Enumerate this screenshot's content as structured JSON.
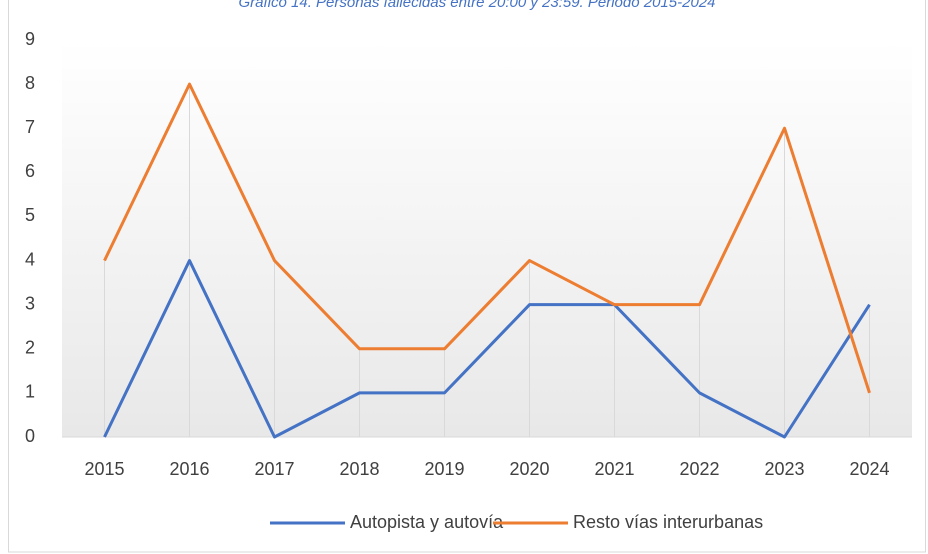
{
  "chart_data": {
    "type": "line",
    "title": "Gráfico 14. Personas fallecidas entre 20:00 y 23:59. Periodo 2015-2024",
    "categories": [
      "2015",
      "2016",
      "2017",
      "2018",
      "2019",
      "2020",
      "2021",
      "2022",
      "2023",
      "2024"
    ],
    "series": [
      {
        "name": "Autopista y autovía",
        "color": "#4472c4",
        "values": [
          0,
          4,
          0,
          1,
          1,
          3,
          3,
          1,
          0,
          3
        ]
      },
      {
        "name": "Resto vías interurbanas",
        "color": "#ed7d31",
        "values": [
          4,
          8,
          4,
          2,
          2,
          4,
          3,
          3,
          7,
          1
        ]
      }
    ],
    "ylim": [
      0,
      9
    ],
    "yticks": [
      0,
      1,
      2,
      3,
      4,
      5,
      6,
      7,
      8,
      9
    ],
    "drop_lines": true,
    "legend": "bottom"
  }
}
